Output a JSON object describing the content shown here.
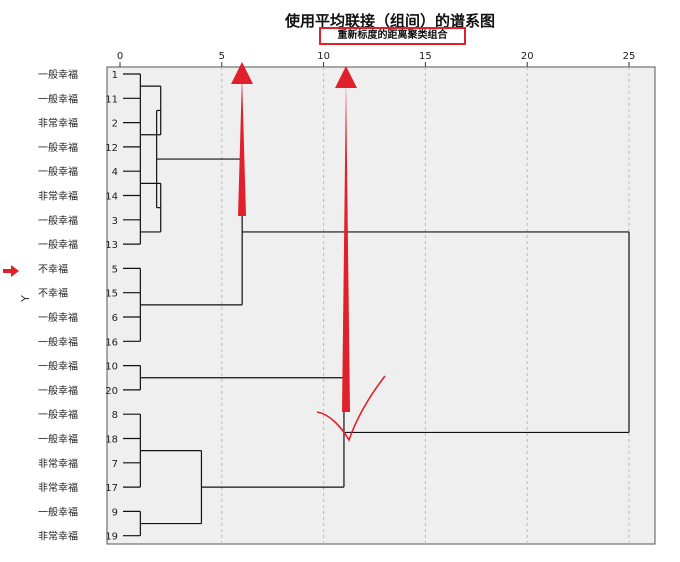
{
  "chart_data": {
    "type": "dendrogram",
    "title": "使用平均联接（组间）的谱系图",
    "subtitle": "重新标度的距离聚类组合",
    "ylabel": "Y",
    "xlim": [
      0,
      26
    ],
    "x_ticks": [
      0,
      5,
      10,
      15,
      20,
      25
    ],
    "leaves": [
      {
        "label": "一般幸福",
        "id": "1"
      },
      {
        "label": "一般幸福",
        "id": "11"
      },
      {
        "label": "非常幸福",
        "id": "2"
      },
      {
        "label": "一般幸福",
        "id": "12"
      },
      {
        "label": "一般幸福",
        "id": "4"
      },
      {
        "label": "非常幸福",
        "id": "14"
      },
      {
        "label": "一般幸福",
        "id": "3"
      },
      {
        "label": "一般幸福",
        "id": "13"
      },
      {
        "label": "不幸福",
        "id": "5"
      },
      {
        "label": "不幸福",
        "id": "15"
      },
      {
        "label": "一般幸福",
        "id": "6"
      },
      {
        "label": "一般幸福",
        "id": "16"
      },
      {
        "label": "一般幸福",
        "id": "10"
      },
      {
        "label": "一般幸福",
        "id": "20"
      },
      {
        "label": "一般幸福",
        "id": "8"
      },
      {
        "label": "一般幸福",
        "id": "18"
      },
      {
        "label": "非常幸福",
        "id": "7"
      },
      {
        "label": "非常幸福",
        "id": "17"
      },
      {
        "label": "一般幸福",
        "id": "9"
      },
      {
        "label": "非常幸福",
        "id": "19"
      }
    ],
    "merges": [
      {
        "members": [
          0,
          1,
          2,
          3,
          4,
          5,
          6,
          7
        ],
        "distance": 1
      },
      {
        "members": [
          8,
          9,
          10,
          11
        ],
        "distance": 1
      },
      {
        "members": [
          12,
          13
        ],
        "distance": 1
      },
      {
        "members": [
          14,
          15,
          16,
          17
        ],
        "distance": 1
      },
      {
        "members": [
          18,
          19
        ],
        "distance": 1
      },
      {
        "children": [
          [
            0,
            1
          ],
          [
            2,
            3
          ]
        ],
        "distance": 2
      },
      {
        "children": [
          [
            4,
            5
          ],
          [
            6,
            7
          ]
        ],
        "distance": 2
      },
      {
        "children": [
          [
            0,
            3
          ],
          [
            4,
            7
          ]
        ],
        "distance": 1.8
      },
      {
        "children": [
          [
            0,
            7
          ],
          [
            8,
            11
          ]
        ],
        "distance": 6
      },
      {
        "children": [
          [
            14,
            17
          ],
          [
            18,
            19
          ]
        ],
        "distance": 4
      },
      {
        "children": [
          [
            12,
            13
          ],
          [
            14,
            19
          ]
        ],
        "distance": 11
      },
      {
        "children": [
          [
            0,
            11
          ],
          [
            12,
            19
          ]
        ],
        "distance": 25
      }
    ],
    "colors": {
      "annotation": "#e0202a",
      "line": "#111111",
      "grid": "#bbbbbb",
      "plot_bg": "#efefef"
    }
  }
}
